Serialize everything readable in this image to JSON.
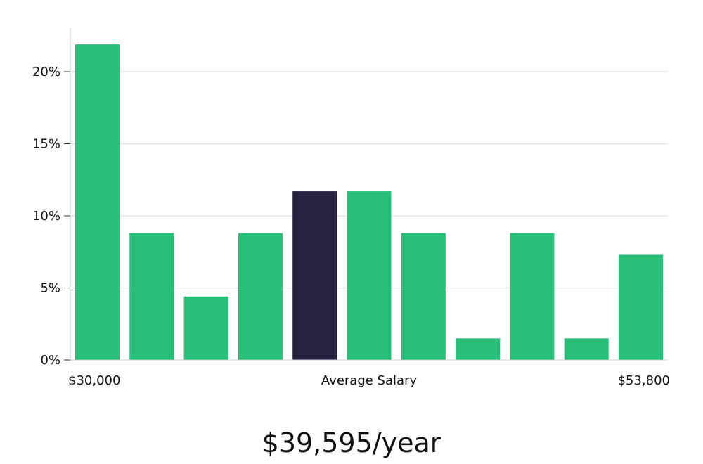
{
  "chart_data": {
    "type": "bar",
    "categories": [
      "1",
      "2",
      "3",
      "4",
      "5",
      "6",
      "7",
      "8",
      "9",
      "10",
      "11"
    ],
    "values": [
      21.9,
      8.8,
      4.4,
      8.8,
      11.7,
      11.7,
      8.8,
      1.5,
      8.8,
      1.5,
      7.3
    ],
    "highlight_index": 4,
    "ylim": [
      0,
      23
    ],
    "yticks": [
      0,
      5,
      10,
      15,
      20
    ],
    "ytick_labels": [
      "0%",
      "5%",
      "10%",
      "15%",
      "20%"
    ],
    "x_left_label": "$30,000",
    "x_center_label": "Average Salary",
    "x_right_label": "$53,800",
    "grid": true,
    "colors": {
      "bar": "#29bf78",
      "highlight": "#272442",
      "grid": "#dddddd",
      "axis": "#cccccc"
    }
  },
  "summary": {
    "salary_text": "$39,595/year"
  }
}
